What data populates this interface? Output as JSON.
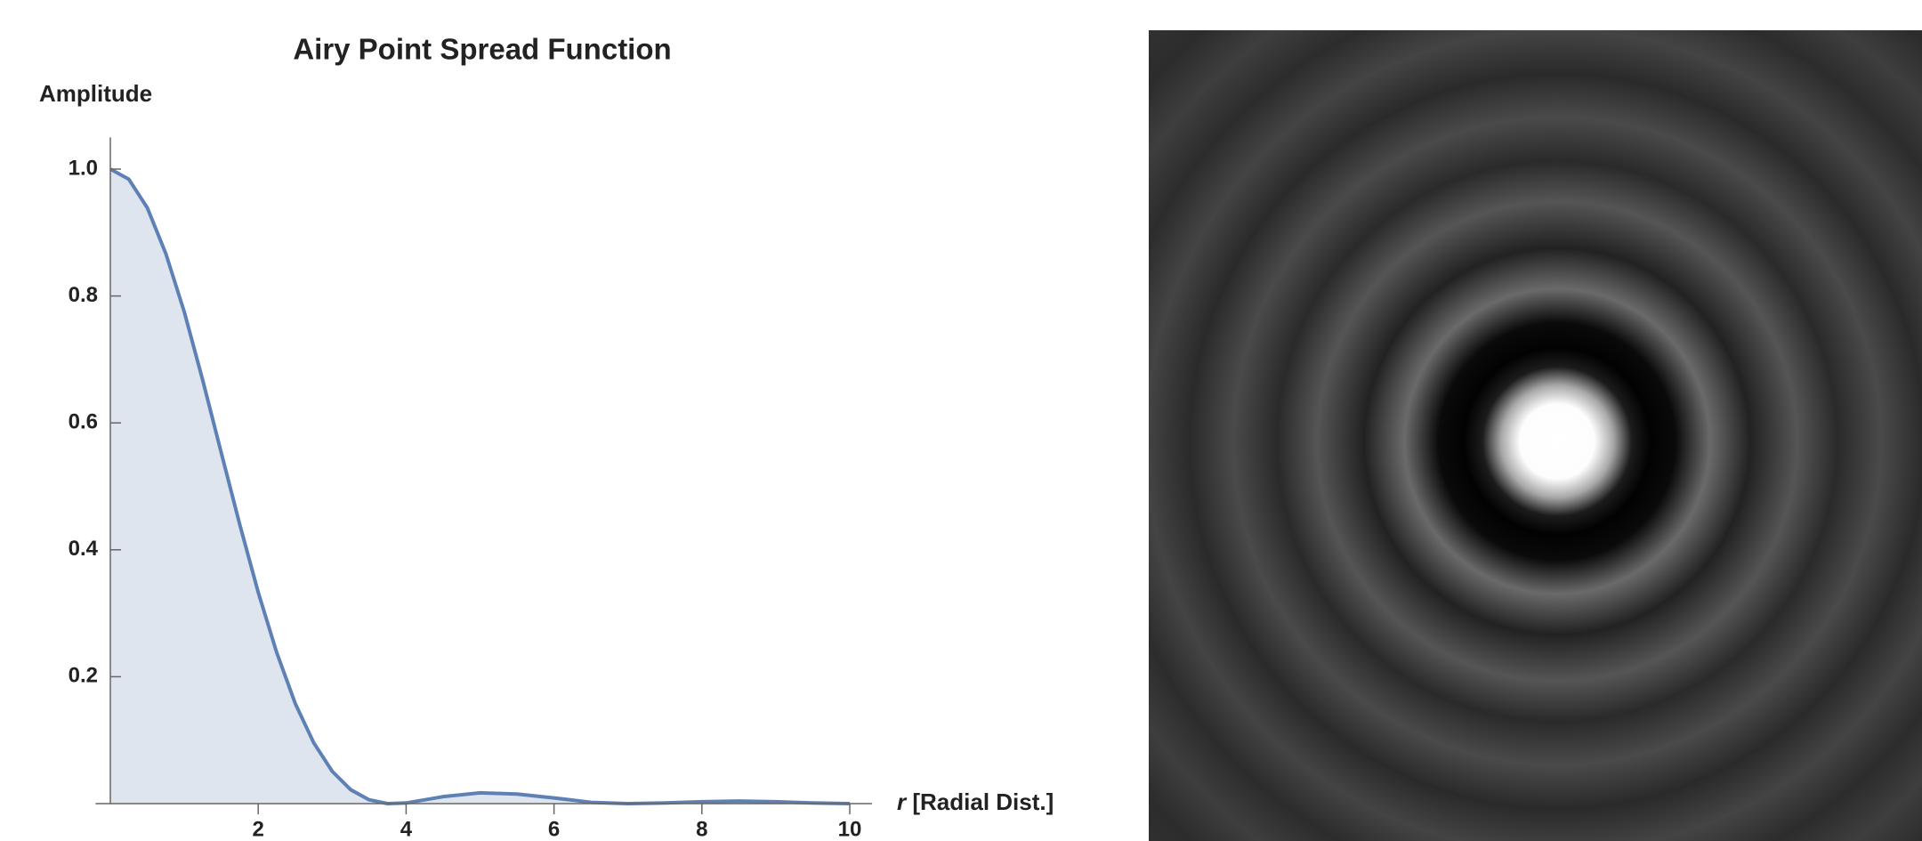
{
  "chart_data": {
    "type": "area",
    "title": "Airy Point Spread Function",
    "ylabel": "Amplitude",
    "xlabel": {
      "symbol": "r",
      "text": "[Radial Dist.]"
    },
    "x": [
      0,
      0.25,
      0.5,
      0.75,
      1,
      1.25,
      1.5,
      1.75,
      2,
      2.25,
      2.5,
      2.75,
      3,
      3.25,
      3.5,
      3.75,
      4,
      4.5,
      5,
      5.5,
      6,
      6.5,
      7,
      7.5,
      8,
      8.5,
      9,
      9.5,
      10
    ],
    "series": [
      {
        "color": "#5e81b5",
        "fill": "#dfe5ef",
        "values": [
          1,
          0.984,
          0.939,
          0.867,
          0.775,
          0.667,
          0.553,
          0.44,
          0.333,
          0.238,
          0.158,
          0.096,
          0.051,
          0.022,
          0.006,
          0,
          0.001,
          0.011,
          0.017,
          0.015,
          0.009,
          0.002,
          0,
          0.001,
          0.003,
          0.004,
          0.003,
          0.001,
          0
        ]
      }
    ],
    "xlim": [
      -0.2,
      10.3
    ],
    "ylim": [
      0,
      1.05
    ],
    "xticks": [
      2,
      4,
      6,
      8,
      10
    ],
    "yticks": [
      0.2,
      0.4,
      0.6,
      0.8,
      {
        "value": 1,
        "label": "1.0"
      }
    ],
    "grid": false
  }
}
